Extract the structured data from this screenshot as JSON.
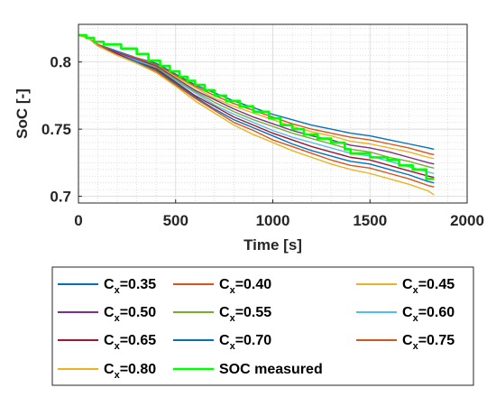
{
  "chart_data": {
    "type": "line",
    "xlabel": "Time [s]",
    "ylabel": "SoC [-]",
    "xlim": [
      0,
      2000
    ],
    "ylim": [
      0.695,
      0.828
    ],
    "xticks": [
      0,
      500,
      1000,
      1500,
      2000
    ],
    "xtick_labels": [
      "0",
      "500",
      "1000",
      "1500",
      "2000"
    ],
    "yticks": [
      0.7,
      0.75,
      0.8
    ],
    "ytick_labels": [
      "0.7",
      "0.75",
      "0.8"
    ],
    "grid": "minor dotted",
    "legend_placement": "below plot",
    "series": [
      {
        "label_main": "C",
        "label_sub": "x",
        "label_tail": "=0.35",
        "color": "#0072BD",
        "style": "solid",
        "points": [
          [
            0,
            0.82
          ],
          [
            50,
            0.818
          ],
          [
            100,
            0.813
          ],
          [
            200,
            0.808
          ],
          [
            300,
            0.803
          ],
          [
            400,
            0.799
          ],
          [
            500,
            0.791
          ],
          [
            600,
            0.783
          ],
          [
            700,
            0.777
          ],
          [
            800,
            0.771
          ],
          [
            900,
            0.766
          ],
          [
            1000,
            0.761
          ],
          [
            1100,
            0.757
          ],
          [
            1200,
            0.753
          ],
          [
            1300,
            0.75
          ],
          [
            1400,
            0.747
          ],
          [
            1500,
            0.745
          ],
          [
            1600,
            0.742
          ],
          [
            1700,
            0.739
          ],
          [
            1800,
            0.736
          ],
          [
            1830,
            0.735
          ]
        ]
      },
      {
        "label_main": "C",
        "label_sub": "x",
        "label_tail": "=0.40",
        "color": "#D95319",
        "style": "solid",
        "points": [
          [
            0,
            0.82
          ],
          [
            50,
            0.818
          ],
          [
            100,
            0.813
          ],
          [
            200,
            0.807
          ],
          [
            300,
            0.803
          ],
          [
            400,
            0.798
          ],
          [
            500,
            0.79
          ],
          [
            600,
            0.782
          ],
          [
            700,
            0.775
          ],
          [
            800,
            0.769
          ],
          [
            900,
            0.764
          ],
          [
            1000,
            0.759
          ],
          [
            1100,
            0.754
          ],
          [
            1200,
            0.75
          ],
          [
            1300,
            0.747
          ],
          [
            1400,
            0.744
          ],
          [
            1500,
            0.742
          ],
          [
            1600,
            0.739
          ],
          [
            1700,
            0.736
          ],
          [
            1800,
            0.732
          ],
          [
            1830,
            0.731
          ]
        ]
      },
      {
        "label_main": "C",
        "label_sub": "x",
        "label_tail": "=0.45",
        "color": "#EDB120",
        "style": "solid",
        "points": [
          [
            0,
            0.82
          ],
          [
            50,
            0.818
          ],
          [
            100,
            0.812
          ],
          [
            200,
            0.807
          ],
          [
            300,
            0.802
          ],
          [
            400,
            0.797
          ],
          [
            500,
            0.789
          ],
          [
            600,
            0.781
          ],
          [
            700,
            0.773
          ],
          [
            800,
            0.767
          ],
          [
            900,
            0.762
          ],
          [
            1000,
            0.757
          ],
          [
            1100,
            0.752
          ],
          [
            1200,
            0.748
          ],
          [
            1300,
            0.745
          ],
          [
            1400,
            0.741
          ],
          [
            1500,
            0.739
          ],
          [
            1600,
            0.736
          ],
          [
            1700,
            0.733
          ],
          [
            1800,
            0.729
          ],
          [
            1830,
            0.728
          ]
        ]
      },
      {
        "label_main": "C",
        "label_sub": "x",
        "label_tail": "=0.50",
        "color": "#7E2F8E",
        "style": "solid",
        "points": [
          [
            0,
            0.82
          ],
          [
            50,
            0.818
          ],
          [
            100,
            0.812
          ],
          [
            200,
            0.807
          ],
          [
            300,
            0.802
          ],
          [
            400,
            0.797
          ],
          [
            500,
            0.788
          ],
          [
            600,
            0.779
          ],
          [
            700,
            0.772
          ],
          [
            800,
            0.765
          ],
          [
            900,
            0.759
          ],
          [
            1000,
            0.754
          ],
          [
            1100,
            0.749
          ],
          [
            1200,
            0.745
          ],
          [
            1300,
            0.742
          ],
          [
            1400,
            0.738
          ],
          [
            1500,
            0.736
          ],
          [
            1600,
            0.733
          ],
          [
            1700,
            0.729
          ],
          [
            1800,
            0.725
          ],
          [
            1830,
            0.724
          ]
        ]
      },
      {
        "label_main": "C",
        "label_sub": "x",
        "label_tail": "=0.55",
        "color": "#77AC30",
        "style": "solid",
        "points": [
          [
            0,
            0.82
          ],
          [
            50,
            0.818
          ],
          [
            100,
            0.812
          ],
          [
            200,
            0.806
          ],
          [
            300,
            0.801
          ],
          [
            400,
            0.796
          ],
          [
            500,
            0.787
          ],
          [
            600,
            0.778
          ],
          [
            700,
            0.77
          ],
          [
            800,
            0.763
          ],
          [
            900,
            0.757
          ],
          [
            1000,
            0.752
          ],
          [
            1100,
            0.747
          ],
          [
            1200,
            0.743
          ],
          [
            1300,
            0.739
          ],
          [
            1400,
            0.735
          ],
          [
            1500,
            0.733
          ],
          [
            1600,
            0.729
          ],
          [
            1700,
            0.726
          ],
          [
            1800,
            0.722
          ],
          [
            1830,
            0.721
          ]
        ]
      },
      {
        "label_main": "C",
        "label_sub": "x",
        "label_tail": "=0.60",
        "color": "#4DBEEE",
        "style": "solid",
        "points": [
          [
            0,
            0.82
          ],
          [
            50,
            0.818
          ],
          [
            100,
            0.812
          ],
          [
            200,
            0.806
          ],
          [
            300,
            0.801
          ],
          [
            400,
            0.795
          ],
          [
            500,
            0.786
          ],
          [
            600,
            0.777
          ],
          [
            700,
            0.768
          ],
          [
            800,
            0.761
          ],
          [
            900,
            0.755
          ],
          [
            1000,
            0.749
          ],
          [
            1100,
            0.744
          ],
          [
            1200,
            0.74
          ],
          [
            1300,
            0.736
          ],
          [
            1400,
            0.732
          ],
          [
            1500,
            0.73
          ],
          [
            1600,
            0.726
          ],
          [
            1700,
            0.722
          ],
          [
            1800,
            0.718
          ],
          [
            1830,
            0.717
          ]
        ]
      },
      {
        "label_main": "C",
        "label_sub": "x",
        "label_tail": "=0.65",
        "color": "#A2142F",
        "style": "solid",
        "points": [
          [
            0,
            0.82
          ],
          [
            50,
            0.818
          ],
          [
            100,
            0.812
          ],
          [
            200,
            0.806
          ],
          [
            300,
            0.8
          ],
          [
            400,
            0.795
          ],
          [
            500,
            0.785
          ],
          [
            600,
            0.775
          ],
          [
            700,
            0.767
          ],
          [
            800,
            0.759
          ],
          [
            900,
            0.753
          ],
          [
            1000,
            0.747
          ],
          [
            1100,
            0.742
          ],
          [
            1200,
            0.737
          ],
          [
            1300,
            0.733
          ],
          [
            1400,
            0.729
          ],
          [
            1500,
            0.727
          ],
          [
            1600,
            0.723
          ],
          [
            1700,
            0.719
          ],
          [
            1800,
            0.715
          ],
          [
            1830,
            0.714
          ]
        ]
      },
      {
        "label_main": "C",
        "label_sub": "x",
        "label_tail": "=0.70",
        "color": "#0072BD",
        "style": "solid",
        "points": [
          [
            0,
            0.82
          ],
          [
            50,
            0.818
          ],
          [
            100,
            0.812
          ],
          [
            200,
            0.805
          ],
          [
            300,
            0.8
          ],
          [
            400,
            0.794
          ],
          [
            500,
            0.784
          ],
          [
            600,
            0.774
          ],
          [
            700,
            0.765
          ],
          [
            800,
            0.757
          ],
          [
            900,
            0.751
          ],
          [
            1000,
            0.745
          ],
          [
            1100,
            0.739
          ],
          [
            1200,
            0.734
          ],
          [
            1300,
            0.73
          ],
          [
            1400,
            0.726
          ],
          [
            1500,
            0.724
          ],
          [
            1600,
            0.72
          ],
          [
            1700,
            0.716
          ],
          [
            1800,
            0.711
          ],
          [
            1830,
            0.71
          ]
        ]
      },
      {
        "label_main": "C",
        "label_sub": "x",
        "label_tail": "=0.75",
        "color": "#D95319",
        "style": "solid",
        "points": [
          [
            0,
            0.82
          ],
          [
            50,
            0.818
          ],
          [
            100,
            0.812
          ],
          [
            200,
            0.805
          ],
          [
            300,
            0.799
          ],
          [
            400,
            0.793
          ],
          [
            500,
            0.783
          ],
          [
            600,
            0.773
          ],
          [
            700,
            0.764
          ],
          [
            800,
            0.755
          ],
          [
            900,
            0.749
          ],
          [
            1000,
            0.742
          ],
          [
            1100,
            0.737
          ],
          [
            1200,
            0.732
          ],
          [
            1300,
            0.727
          ],
          [
            1400,
            0.723
          ],
          [
            1500,
            0.721
          ],
          [
            1600,
            0.717
          ],
          [
            1700,
            0.713
          ],
          [
            1800,
            0.708
          ],
          [
            1830,
            0.707
          ]
        ]
      },
      {
        "label_main": "C",
        "label_sub": "x",
        "label_tail": "=0.80",
        "color": "#EDB120",
        "style": "solid",
        "points": [
          [
            0,
            0.82
          ],
          [
            50,
            0.818
          ],
          [
            100,
            0.812
          ],
          [
            200,
            0.805
          ],
          [
            300,
            0.799
          ],
          [
            400,
            0.792
          ],
          [
            500,
            0.782
          ],
          [
            600,
            0.771
          ],
          [
            700,
            0.762
          ],
          [
            800,
            0.753
          ],
          [
            900,
            0.746
          ],
          [
            1000,
            0.74
          ],
          [
            1100,
            0.734
          ],
          [
            1200,
            0.729
          ],
          [
            1300,
            0.724
          ],
          [
            1400,
            0.72
          ],
          [
            1500,
            0.717
          ],
          [
            1600,
            0.713
          ],
          [
            1700,
            0.709
          ],
          [
            1800,
            0.704
          ],
          [
            1830,
            0.701
          ]
        ]
      },
      {
        "label_main": "SOC measured",
        "label_sub": "",
        "label_tail": "",
        "color": "#00FF00",
        "style": "step",
        "points": [
          [
            0,
            0.82
          ],
          [
            40,
            0.82
          ],
          [
            40,
            0.818
          ],
          [
            80,
            0.818
          ],
          [
            80,
            0.815
          ],
          [
            130,
            0.815
          ],
          [
            130,
            0.813
          ],
          [
            220,
            0.813
          ],
          [
            220,
            0.81
          ],
          [
            300,
            0.81
          ],
          [
            300,
            0.806
          ],
          [
            360,
            0.806
          ],
          [
            360,
            0.801
          ],
          [
            420,
            0.801
          ],
          [
            420,
            0.797
          ],
          [
            470,
            0.797
          ],
          [
            470,
            0.793
          ],
          [
            520,
            0.793
          ],
          [
            520,
            0.789
          ],
          [
            560,
            0.789
          ],
          [
            560,
            0.786
          ],
          [
            600,
            0.786
          ],
          [
            600,
            0.783
          ],
          [
            650,
            0.783
          ],
          [
            650,
            0.779
          ],
          [
            700,
            0.779
          ],
          [
            700,
            0.775
          ],
          [
            760,
            0.775
          ],
          [
            760,
            0.771
          ],
          [
            830,
            0.771
          ],
          [
            830,
            0.767
          ],
          [
            900,
            0.767
          ],
          [
            900,
            0.763
          ],
          [
            980,
            0.763
          ],
          [
            980,
            0.758
          ],
          [
            1040,
            0.758
          ],
          [
            1040,
            0.753
          ],
          [
            1100,
            0.753
          ],
          [
            1100,
            0.75
          ],
          [
            1160,
            0.75
          ],
          [
            1160,
            0.746
          ],
          [
            1230,
            0.746
          ],
          [
            1230,
            0.743
          ],
          [
            1300,
            0.743
          ],
          [
            1300,
            0.74
          ],
          [
            1370,
            0.74
          ],
          [
            1370,
            0.735
          ],
          [
            1400,
            0.735
          ],
          [
            1400,
            0.732
          ],
          [
            1500,
            0.732
          ],
          [
            1500,
            0.729
          ],
          [
            1590,
            0.729
          ],
          [
            1590,
            0.727
          ],
          [
            1650,
            0.727
          ],
          [
            1650,
            0.723
          ],
          [
            1720,
            0.723
          ],
          [
            1720,
            0.72
          ],
          [
            1790,
            0.72
          ],
          [
            1790,
            0.713
          ],
          [
            1830,
            0.713
          ]
        ]
      }
    ]
  }
}
